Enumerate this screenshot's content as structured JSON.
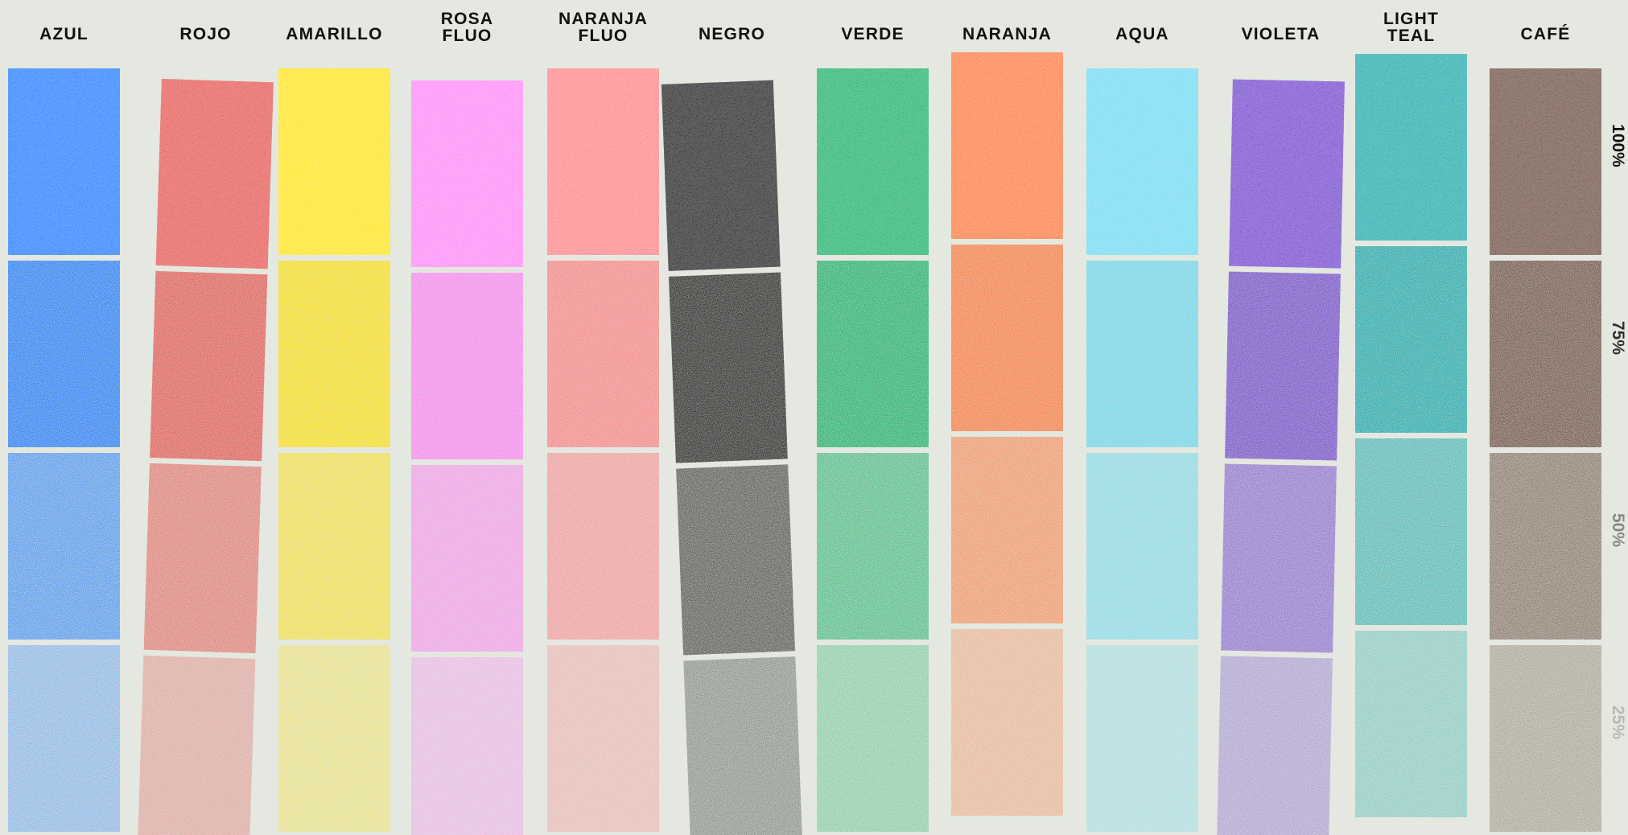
{
  "chart_data": {
    "type": "heatmap",
    "title": "",
    "row_labels": [
      "100%",
      "75%",
      "50%",
      "25%"
    ],
    "row_opacity": [
      1.0,
      0.75,
      0.5,
      0.25
    ],
    "columns": [
      {
        "title_lines": [
          "AZUL"
        ],
        "color": "#0a6cff"
      },
      {
        "title_lines": [
          "ROJO"
        ],
        "color": "#e2433e"
      },
      {
        "title_lines": [
          "AMARILLO"
        ],
        "color": "#ffe000"
      },
      {
        "title_lines": [
          "ROSA",
          "FLUO"
        ],
        "color": "#ff78f5"
      },
      {
        "title_lines": [
          "NARANJA",
          "FLUO"
        ],
        "color": "#ff7579"
      },
      {
        "title_lines": [
          "NEGRO"
        ],
        "color": "#0a0a0a"
      },
      {
        "title_lines": [
          "VERDE"
        ],
        "color": "#05a857"
      },
      {
        "title_lines": [
          "NARANJA"
        ],
        "color": "#ff6a2a"
      },
      {
        "title_lines": [
          "AQUA"
        ],
        "color": "#5dd6f1"
      },
      {
        "title_lines": [
          "VIOLETA"
        ],
        "color": "#6232c8"
      },
      {
        "title_lines": [
          "LIGHT",
          "TEAL"
        ],
        "color": "#079fa2"
      },
      {
        "title_lines": [
          "CAFÉ"
        ],
        "color": "#5b3b2d"
      }
    ]
  }
}
